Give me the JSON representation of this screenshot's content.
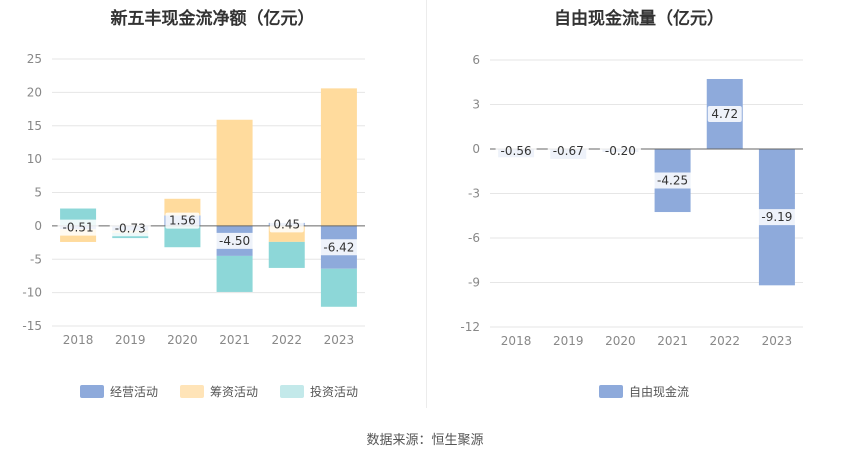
{
  "chart_data": [
    {
      "type": "bar",
      "stacked": true,
      "title": "新五丰现金流净额（亿元）",
      "categories": [
        "2018",
        "2019",
        "2020",
        "2021",
        "2022",
        "2023"
      ],
      "ylim": [
        -15,
        25
      ],
      "yticks": [
        "25",
        "20",
        "15",
        "10",
        "5",
        "0",
        "-5",
        "-10",
        "-15"
      ],
      "grid": true,
      "legend_position": "bottom",
      "series": [
        {
          "name": "经营活动",
          "color": "#8eaadb",
          "values": [
            -0.51,
            -0.73,
            1.56,
            -4.5,
            0.45,
            -6.42
          ]
        },
        {
          "name": "筹资活动",
          "color": "#ffdb9d",
          "values": [
            -1.9,
            -0.3,
            2.5,
            15.9,
            -2.4,
            20.6
          ]
        },
        {
          "name": "投资活动",
          "color": "#8dd7d8",
          "values": [
            2.6,
            -0.8,
            -3.2,
            -5.4,
            -3.9,
            -5.7
          ]
        }
      ],
      "data_labels": [
        "-0.51",
        "-0.73",
        "1.56",
        "-4.50",
        "0.45",
        "-6.42"
      ]
    },
    {
      "type": "bar",
      "title": "自由现金流量（亿元）",
      "categories": [
        "2018",
        "2019",
        "2020",
        "2021",
        "2022",
        "2023"
      ],
      "ylim": [
        -12,
        6
      ],
      "yticks": [
        "6",
        "3",
        "0",
        "-3",
        "-6",
        "-9",
        "-12"
      ],
      "grid": true,
      "legend_position": "bottom",
      "series": [
        {
          "name": "自由现金流",
          "color": "#8eaadb",
          "values": [
            -0.56,
            -0.67,
            -0.2,
            -4.25,
            4.72,
            -9.19
          ]
        }
      ],
      "data_labels": [
        "-0.56",
        "-0.67",
        "-0.20",
        "-4.25",
        "4.72",
        "-9.19"
      ]
    }
  ],
  "footer": {
    "source": "数据来源：恒生聚源"
  },
  "colors": {
    "axis_text": "#888888",
    "grid": "#e6e6e6",
    "zero_line": "#666666"
  }
}
